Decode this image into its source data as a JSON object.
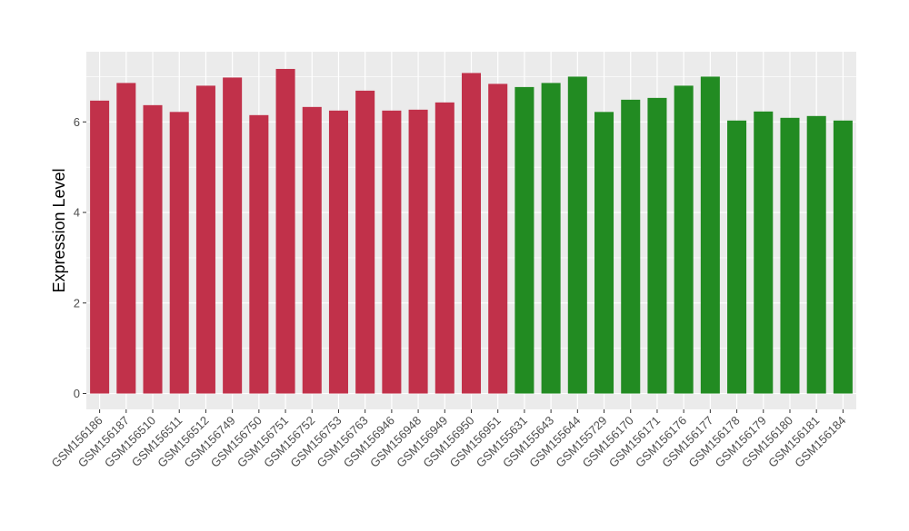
{
  "chart_data": {
    "type": "bar",
    "ylabel": "Expression Level",
    "ylim": [
      -0.35,
      7.55
    ],
    "yticks": [
      0,
      2,
      4,
      6
    ],
    "grid": true,
    "background": "#ebebeb",
    "colors": {
      "group_a": "#c1314a",
      "group_b": "#228b22"
    },
    "categories": [
      "GSM156186",
      "GSM156187",
      "GSM156510",
      "GSM156511",
      "GSM156512",
      "GSM156749",
      "GSM156750",
      "GSM156751",
      "GSM156752",
      "GSM156753",
      "GSM156763",
      "GSM156946",
      "GSM156948",
      "GSM156949",
      "GSM156950",
      "GSM156951",
      "GSM155631",
      "GSM155643",
      "GSM155644",
      "GSM155729",
      "GSM156170",
      "GSM156171",
      "GSM156176",
      "GSM156177",
      "GSM156178",
      "GSM156179",
      "GSM156180",
      "GSM156181",
      "GSM156184"
    ],
    "values": [
      6.47,
      6.86,
      6.37,
      6.22,
      6.8,
      6.98,
      6.15,
      7.17,
      6.33,
      6.25,
      6.69,
      6.25,
      6.27,
      6.43,
      7.08,
      6.84,
      6.77,
      6.86,
      7.0,
      6.22,
      6.49,
      6.53,
      6.8,
      7.0,
      6.03,
      6.23,
      6.09,
      6.13,
      6.03
    ],
    "groups": [
      "group_a",
      "group_a",
      "group_a",
      "group_a",
      "group_a",
      "group_a",
      "group_a",
      "group_a",
      "group_a",
      "group_a",
      "group_a",
      "group_a",
      "group_a",
      "group_a",
      "group_a",
      "group_a",
      "group_b",
      "group_b",
      "group_b",
      "group_b",
      "group_b",
      "group_b",
      "group_b",
      "group_b",
      "group_b",
      "group_b",
      "group_b",
      "group_b",
      "group_b"
    ]
  }
}
